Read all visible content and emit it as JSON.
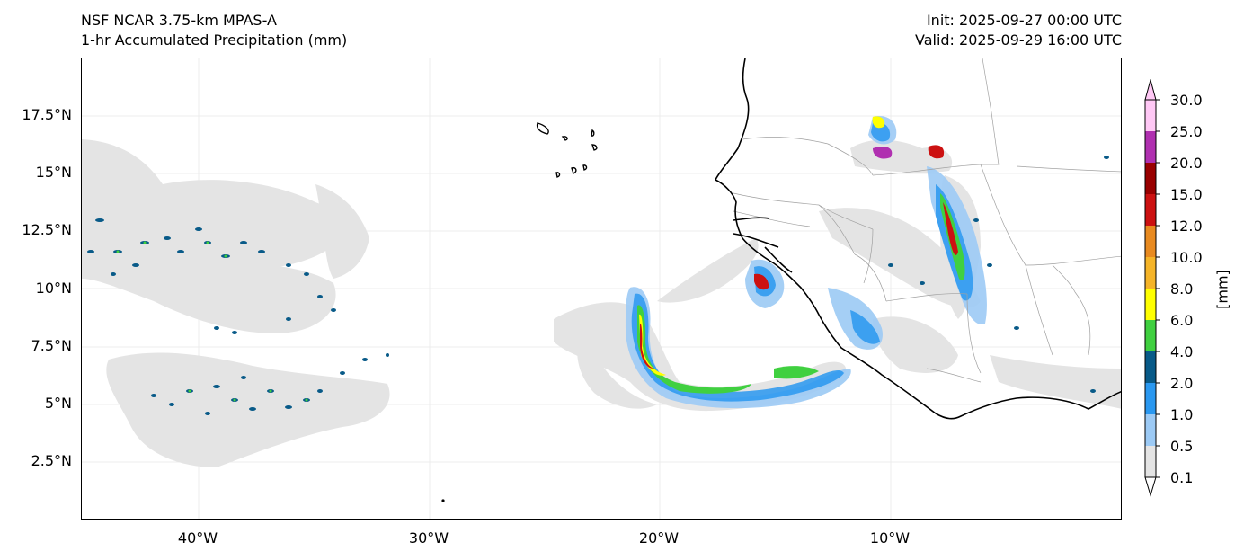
{
  "titles": {
    "model": "NSF NCAR 3.75-km MPAS-A",
    "field": "1-hr Accumulated Precipitation (mm)",
    "init": "Init: 2025-09-27 00:00 UTC",
    "valid": "Valid: 2025-09-29 16:00 UTC"
  },
  "axes": {
    "lat_labels": [
      "17.5°N",
      "15°N",
      "12.5°N",
      "10°N",
      "7.5°N",
      "5°N",
      "2.5°N"
    ],
    "lon_labels": [
      "40°W",
      "30°W",
      "20°W",
      "10°W"
    ]
  },
  "colorbar": {
    "unit": "[mm]",
    "levels": [
      "30.0",
      "25.0",
      "20.0",
      "15.0",
      "12.0",
      "10.0",
      "8.0",
      "6.0",
      "4.0",
      "2.0",
      "1.0",
      "0.5",
      "0.1"
    ],
    "colors": [
      "#ffc8f5",
      "#b030b0",
      "#990000",
      "#cc1111",
      "#e88a20",
      "#f5b428",
      "#ffff00",
      "#40d040",
      "#085a88",
      "#2a98f0",
      "#9ccaf5",
      "#e4e4e4"
    ]
  },
  "colors": {
    "no_precip": "#e4e4e4",
    "coastline": "#000000",
    "borders": "#9a9a9a",
    "gridlines": "#e8e8e8"
  }
}
